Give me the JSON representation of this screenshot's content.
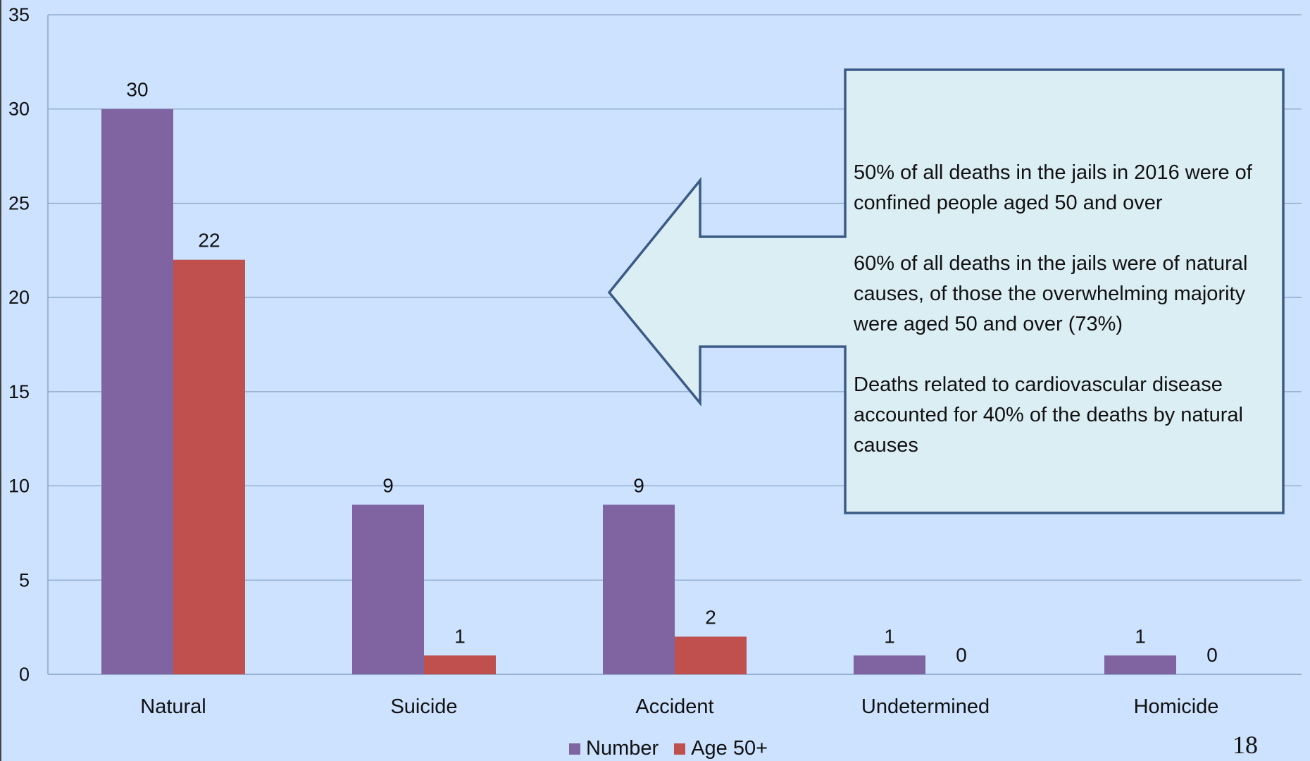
{
  "chart_data": {
    "type": "bar",
    "categories": [
      "Natural",
      "Suicide",
      "Accident",
      "Undetermined",
      "Homicide"
    ],
    "series": [
      {
        "name": "Number",
        "color": "#8064a2",
        "values": [
          30,
          9,
          9,
          1,
          1
        ]
      },
      {
        "name": "Age 50+",
        "color": "#c0504d",
        "values": [
          22,
          1,
          2,
          0,
          0
        ]
      }
    ],
    "ylim": [
      0,
      35
    ],
    "yticks": [
      0,
      5,
      10,
      15,
      20,
      25,
      30,
      35
    ],
    "grid": true,
    "legend_position": "bottom",
    "data_labels": true
  },
  "callout": {
    "paragraphs": [
      "50% of all deaths in the jails in 2016 were of confined people aged 50 and over",
      "60% of all deaths in the jails were of natural causes, of those the overwhelming majority were aged 50 and over (73%)",
      "Deaths related to cardiovascular disease accounted for 40% of the deaths by natural causes"
    ]
  },
  "slide_number": "18",
  "colors": {
    "background": "#cce2ff",
    "callout_fill": "#dbeef4",
    "callout_border": "#3b5a86",
    "gridline": "#8aa4c6"
  }
}
